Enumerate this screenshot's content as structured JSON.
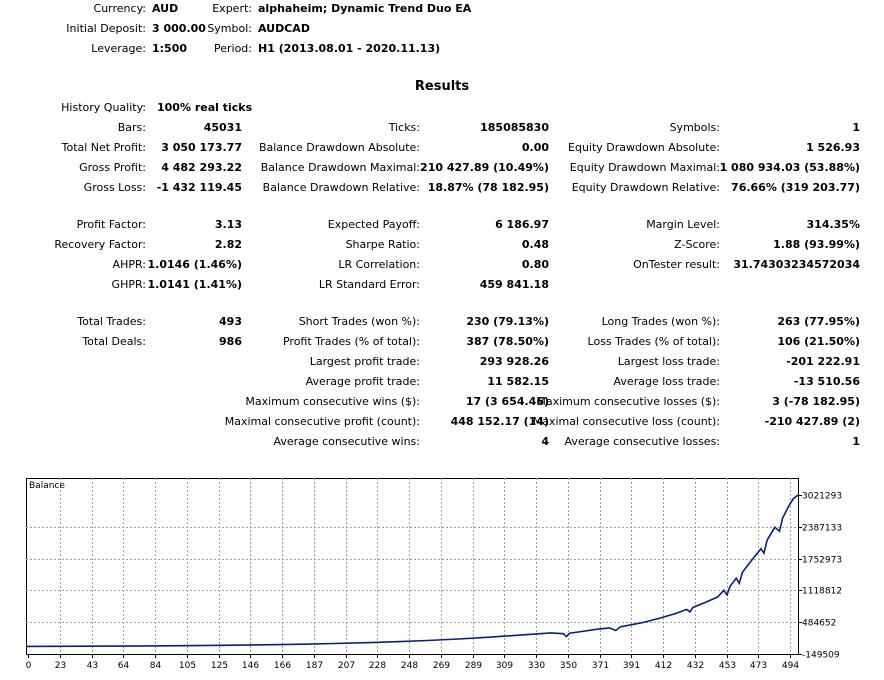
{
  "header": {
    "currency_label": "Currency:",
    "currency_value": "AUD",
    "deposit_label": "Initial Deposit:",
    "deposit_value": "3 000.00",
    "leverage_label": "Leverage:",
    "leverage_value": "1:500",
    "expert_label": "Expert:",
    "expert_value": "alphaheim; Dynamic Trend Duo EA",
    "symbol_label": "Symbol:",
    "symbol_value": "AUDCAD",
    "period_label": "Period:",
    "period_value": "H1 (2013.08.01 - 2020.11.13)"
  },
  "results_title": "Results",
  "stats": {
    "history_quality_label": "History Quality:",
    "history_quality_value": "100% real ticks",
    "rows": [
      {
        "l1": "Bars:",
        "v1": "45031",
        "l2": "Ticks:",
        "v2": "185085830",
        "l3": "Symbols:",
        "v3": "1"
      },
      {
        "l1": "Total Net Profit:",
        "v1": "3 050 173.77",
        "l2": "Balance Drawdown Absolute:",
        "v2": "0.00",
        "l3": "Equity Drawdown Absolute:",
        "v3": "1 526.93"
      },
      {
        "l1": "Gross Profit:",
        "v1": "4 482 293.22",
        "l2": "Balance Drawdown Maximal:",
        "v2": "210 427.89 (10.49%)",
        "l3": "Equity Drawdown Maximal:",
        "v3": "1 080 934.03 (53.88%)"
      },
      {
        "l1": "Gross Loss:",
        "v1": "-1 432 119.45",
        "l2": "Balance Drawdown Relative:",
        "v2": "18.87% (78 182.95)",
        "l3": "Equity Drawdown Relative:",
        "v3": "76.66% (319 203.77)"
      },
      {
        "l1": "Profit Factor:",
        "v1": "3.13",
        "l2": "Expected Payoff:",
        "v2": "6 186.97",
        "l3": "Margin Level:",
        "v3": "314.35%"
      },
      {
        "l1": "Recovery Factor:",
        "v1": "2.82",
        "l2": "Sharpe Ratio:",
        "v2": "0.48",
        "l3": "Z-Score:",
        "v3": "1.88 (93.99%)"
      },
      {
        "l1": "AHPR:",
        "v1": "1.0146 (1.46%)",
        "l2": "LR Correlation:",
        "v2": "0.80",
        "l3": "OnTester result:",
        "v3": "31.74303234572034"
      },
      {
        "l1": "GHPR:",
        "v1": "1.0141 (1.41%)",
        "l2": "LR Standard Error:",
        "v2": "459 841.18",
        "l3": "",
        "v3": ""
      },
      {
        "l1": "Total Trades:",
        "v1": "493",
        "l2": "Short Trades (won %):",
        "v2": "230 (79.13%)",
        "l3": "Long Trades (won %):",
        "v3": "263 (77.95%)"
      },
      {
        "l1": "Total Deals:",
        "v1": "986",
        "l2": "Profit Trades (% of total):",
        "v2": "387 (78.50%)",
        "l3": "Loss Trades (% of total):",
        "v3": "106 (21.50%)"
      },
      {
        "l1": "",
        "v1": "",
        "l2": "Largest profit trade:",
        "v2": "293 928.26",
        "l3": "Largest loss trade:",
        "v3": "-201 222.91"
      },
      {
        "l1": "",
        "v1": "",
        "l2": "Average profit trade:",
        "v2": "11 582.15",
        "l3": "Average loss trade:",
        "v3": "-13 510.56"
      },
      {
        "l1": "",
        "v1": "",
        "l2": "Maximum consecutive wins ($):",
        "v2": "17 (3 654.46)",
        "l3": "Maximum consecutive losses ($):",
        "v3": "3 (-78 182.95)"
      },
      {
        "l1": "",
        "v1": "",
        "l2": "Maximal consecutive profit (count):",
        "v2": "448 152.17 (14)",
        "l3": "Maximal consecutive loss (count):",
        "v3": "-210 427.89 (2)"
      },
      {
        "l1": "",
        "v1": "",
        "l2": "Average consecutive wins:",
        "v2": "4",
        "l3": "Average consecutive losses:",
        "v3": "1"
      }
    ]
  },
  "chart_data": {
    "type": "line",
    "title": "Balance",
    "x_ticks": [
      "0",
      "23",
      "43",
      "64",
      "84",
      "105",
      "125",
      "146",
      "166",
      "187",
      "207",
      "228",
      "248",
      "269",
      "289",
      "309",
      "330",
      "350",
      "371",
      "391",
      "412",
      "432",
      "453",
      "473",
      "494"
    ],
    "y_ticks": [
      "3021293",
      "2387133",
      "1752973",
      "1118812",
      "484652",
      "-149509"
    ],
    "xlim": [
      0,
      500
    ],
    "ylim": [
      -149509,
      3021293
    ],
    "line_color": "#0b1f7a",
    "series": [
      {
        "values": [
          [
            0,
            3000
          ],
          [
            20,
            4000
          ],
          [
            40,
            6000
          ],
          [
            60,
            9000
          ],
          [
            80,
            12000
          ],
          [
            100,
            17000
          ],
          [
            120,
            22000
          ],
          [
            140,
            28000
          ],
          [
            160,
            36000
          ],
          [
            180,
            46000
          ],
          [
            200,
            60000
          ],
          [
            220,
            76000
          ],
          [
            240,
            96000
          ],
          [
            260,
            120000
          ],
          [
            280,
            150000
          ],
          [
            300,
            186000
          ],
          [
            320,
            228000
          ],
          [
            340,
            272000
          ],
          [
            348,
            255000
          ],
          [
            350,
            200000
          ],
          [
            352,
            265000
          ],
          [
            360,
            300000
          ],
          [
            370,
            345000
          ],
          [
            378,
            370000
          ],
          [
            382,
            320000
          ],
          [
            385,
            390000
          ],
          [
            400,
            480000
          ],
          [
            410,
            560000
          ],
          [
            420,
            650000
          ],
          [
            428,
            740000
          ],
          [
            430,
            690000
          ],
          [
            432,
            780000
          ],
          [
            440,
            880000
          ],
          [
            448,
            990000
          ],
          [
            452,
            1120000
          ],
          [
            454,
            1030000
          ],
          [
            456,
            1200000
          ],
          [
            460,
            1360000
          ],
          [
            462,
            1260000
          ],
          [
            464,
            1480000
          ],
          [
            470,
            1720000
          ],
          [
            476,
            1950000
          ],
          [
            478,
            1860000
          ],
          [
            480,
            2120000
          ],
          [
            485,
            2380000
          ],
          [
            488,
            2300000
          ],
          [
            490,
            2560000
          ],
          [
            494,
            2800000
          ],
          [
            497,
            2950000
          ],
          [
            500,
            3021293
          ]
        ]
      }
    ]
  }
}
